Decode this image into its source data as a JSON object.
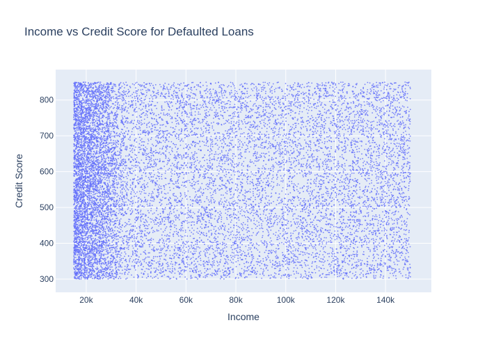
{
  "chart_data": {
    "type": "scatter",
    "title": "Income vs Credit Score for Defaulted Loans",
    "xlabel": "Income",
    "ylabel": "Credit Score",
    "xlim": [
      15000,
      150000
    ],
    "ylim": [
      300,
      850
    ],
    "x_ticks": [
      {
        "value": 20000,
        "label": "20k"
      },
      {
        "value": 40000,
        "label": "40k"
      },
      {
        "value": 60000,
        "label": "60k"
      },
      {
        "value": 80000,
        "label": "80k"
      },
      {
        "value": 100000,
        "label": "100k"
      },
      {
        "value": 120000,
        "label": "120k"
      },
      {
        "value": 140000,
        "label": "140k"
      }
    ],
    "y_ticks": [
      {
        "value": 300,
        "label": "300"
      },
      {
        "value": 400,
        "label": "400"
      },
      {
        "value": 500,
        "label": "500"
      },
      {
        "value": 600,
        "label": "600"
      },
      {
        "value": 700,
        "label": "700"
      },
      {
        "value": 800,
        "label": "800"
      }
    ],
    "grid": true,
    "marker_color": "#636efa",
    "plot_background": "#e5ecf6",
    "series": [
      {
        "x": [
          16200,
          17500,
          18900,
          21300,
          23800,
          26400,
          31200,
          35500,
          42100,
          48800,
          55300,
          61900,
          68400,
          74100,
          81700,
          88300,
          94200,
          101500,
          108900,
          115300,
          122700,
          129400,
          136800,
          143200,
          148500
        ],
        "y": [
          310,
          482,
          715,
          843,
          596,
          331,
          668,
          421,
          805,
          547,
          362,
          719,
          478,
          633,
          389,
          764,
          512,
          341,
          697,
          585,
          826,
          455,
          609,
          372,
          744
        ]
      }
    ]
  }
}
